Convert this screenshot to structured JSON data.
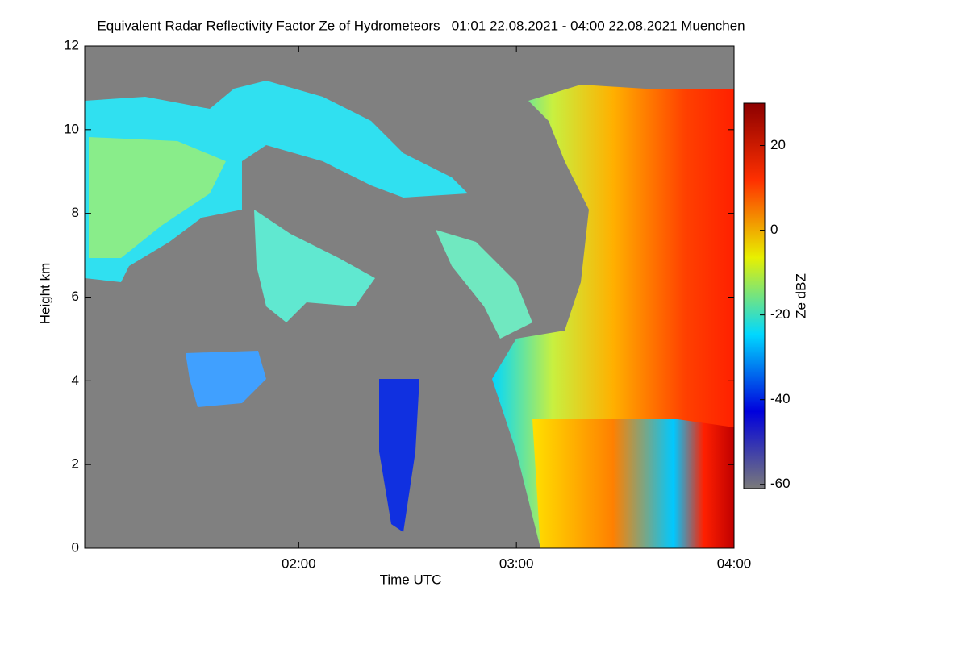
{
  "chart_data": {
    "type": "heatmap",
    "title": "Equivalent Radar Reflectivity Factor Ze of Hydrometeors   01:01 22.08.2021 - 04:00 22.08.2021 Muenchen",
    "xlabel": "Time UTC",
    "ylabel": "Height km",
    "colorbar_label": "Ze dBZ",
    "xlim": [
      61,
      240
    ],
    "xticks": [
      {
        "value": 120,
        "label": "02:00"
      },
      {
        "value": 180,
        "label": "03:00"
      },
      {
        "value": 240,
        "label": "04:00"
      }
    ],
    "ylim": [
      0,
      12
    ],
    "yticks": [
      0,
      2,
      4,
      6,
      8,
      10,
      12
    ],
    "clim": [
      -61,
      30
    ],
    "cticks": [
      -60,
      -40,
      -20,
      0,
      20
    ],
    "colormap": [
      "#7a7a7a",
      "#0000dd",
      "#00d8ff",
      "#e8f000",
      "#ff3000",
      "#8c0000"
    ],
    "background": "#808080"
  }
}
